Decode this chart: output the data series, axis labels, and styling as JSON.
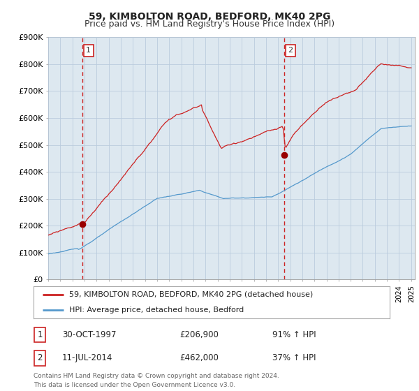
{
  "title": "59, KIMBOLTON ROAD, BEDFORD, MK40 2PG",
  "subtitle": "Price paid vs. HM Land Registry's House Price Index (HPI)",
  "ylim": [
    0,
    900000
  ],
  "yticks": [
    0,
    100000,
    200000,
    300000,
    400000,
    500000,
    600000,
    700000,
    800000,
    900000
  ],
  "ytick_labels": [
    "£0",
    "£100K",
    "£200K",
    "£300K",
    "£400K",
    "£500K",
    "£600K",
    "£700K",
    "£800K",
    "£900K"
  ],
  "sale1_date": 1997.83,
  "sale1_price": 206900,
  "sale2_date": 2014.53,
  "sale2_price": 462000,
  "red_line_color": "#cc2222",
  "blue_line_color": "#5599cc",
  "plot_bg_color": "#dde8f0",
  "marker_color": "#990000",
  "dashed_color": "#cc2222",
  "legend_label_red": "59, KIMBOLTON ROAD, BEDFORD, MK40 2PG (detached house)",
  "legend_label_blue": "HPI: Average price, detached house, Bedford",
  "footnote": "Contains HM Land Registry data © Crown copyright and database right 2024.\nThis data is licensed under the Open Government Licence v3.0.",
  "bg_color": "#ffffff",
  "grid_color": "#bbccdd",
  "title_fontsize": 10,
  "subtitle_fontsize": 9,
  "tick_fontsize": 8
}
